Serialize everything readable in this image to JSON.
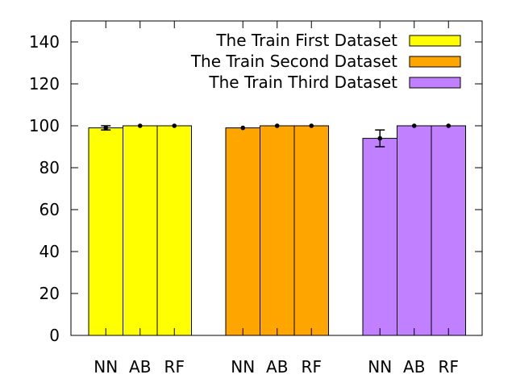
{
  "chart_data": {
    "type": "bar",
    "title": "",
    "xlabel": "",
    "ylabel": "",
    "ylim": [
      0,
      150
    ],
    "yticks": [
      0,
      20,
      40,
      60,
      80,
      100,
      120,
      140
    ],
    "grid": false,
    "legend_position": "top-right",
    "groups": [
      {
        "name": "The Train First Dataset",
        "color": "#ffff00",
        "categories": [
          "NN",
          "AB",
          "RF"
        ],
        "values": [
          99,
          100,
          100
        ],
        "errors": [
          1,
          0,
          0
        ]
      },
      {
        "name": "The Train Second Dataset",
        "color": "#ffa500",
        "categories": [
          "NN",
          "AB",
          "RF"
        ],
        "values": [
          99,
          100,
          100
        ],
        "errors": [
          0,
          0,
          0
        ]
      },
      {
        "name": "The Train Third Dataset",
        "color": "#c080ff",
        "categories": [
          "NN",
          "AB",
          "RF"
        ],
        "values": [
          94,
          100,
          100
        ],
        "errors": [
          4,
          0,
          0
        ]
      }
    ]
  }
}
